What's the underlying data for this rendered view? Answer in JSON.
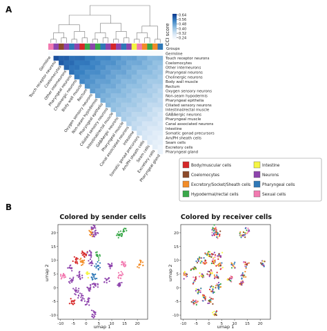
{
  "panel_labels": [
    "A",
    "B"
  ],
  "chart_data": [
    {
      "type": "heatmap",
      "title": "",
      "colorbar": {
        "label": "CCI score",
        "ticks": [
          0.64,
          0.56,
          0.48,
          0.4,
          0.32,
          0.24
        ],
        "range": [
          0.2,
          0.66
        ]
      },
      "groups_label": "Groups",
      "cells": [
        "Germline",
        "Touch receptor neurons",
        "Coelomocytes",
        "Other interneurons",
        "Pharyngeal neurons",
        "Cholinergic neurons",
        "Body wall muscle",
        "Rectum",
        "Oxygen sensory neurons",
        "Non-seam hypodermis",
        "Pharyngeal epithelia",
        "Ciliated sensory neurons",
        "Intestinal/rectal muscle",
        "GABAergic neurons",
        "Pharyngeal muscle",
        "Canal associated neurons",
        "Intestine",
        "Somatic gonad precursors",
        "Am/PH sheath cells",
        "Seam cells",
        "Excretory cells",
        "Pharyngeal gland"
      ],
      "cell_groups": [
        "Sexual cells",
        "Neurons",
        "Coelomocytes",
        "Neurons",
        "Pharyngeal cells",
        "Neurons",
        "Body/muscular cells",
        "Hypodermal/rectal cells",
        "Neurons",
        "Hypodermal/rectal cells",
        "Pharyngeal cells",
        "Neurons",
        "Body/muscular cells",
        "Neurons",
        "Pharyngeal cells",
        "Neurons",
        "Intestine",
        "Sexual cells",
        "Excretory/Socket/Sheath cells",
        "Hypodermal/rectal cells",
        "Excretory/Socket/Sheath cells",
        "Pharyngeal cells"
      ],
      "group_legend": [
        {
          "name": "Body/muscular cells",
          "color": "#d62728"
        },
        {
          "name": "Intestine",
          "color": "#f5f542"
        },
        {
          "name": "Coelomocytes",
          "color": "#8c4a2a"
        },
        {
          "name": "Neurons",
          "color": "#8e44ad"
        },
        {
          "name": "Excretory/Socket/Sheath cells",
          "color": "#f28c28"
        },
        {
          "name": "Pharyngeal cells",
          "color": "#2f78b7"
        },
        {
          "name": "Hypodermal/rectal cells",
          "color": "#3aa84a"
        },
        {
          "name": "Sexual cells",
          "color": "#f27ab0"
        }
      ]
    },
    {
      "type": "scatter",
      "title": "Colored by sender cells",
      "xlabel": "umap 1",
      "ylabel": "umap 2",
      "xlim": [
        -11,
        24
      ],
      "ylim": [
        -11.5,
        23
      ],
      "xticks": [
        -10,
        -5,
        0,
        5,
        10,
        15,
        20
      ],
      "yticks": [
        -10,
        -5,
        0,
        5,
        10,
        15,
        20
      ],
      "coloring": "sender"
    },
    {
      "type": "scatter",
      "title": "Colored by receiver cells",
      "xlabel": "umap 1",
      "ylabel": "umap 2",
      "xlim": [
        -11,
        24
      ],
      "ylim": [
        -11.5,
        23
      ],
      "xticks": [
        -10,
        -5,
        0,
        5,
        10,
        15,
        20
      ],
      "yticks": [
        -10,
        -5,
        0,
        5,
        10,
        15,
        20
      ],
      "coloring": "receiver"
    }
  ],
  "umap_clusters": [
    {
      "x": 2.5,
      "y": 21.5,
      "group": "Neurons"
    },
    {
      "x": 2.0,
      "y": 20.0,
      "group": "Excretory/Socket/Sheath cells"
    },
    {
      "x": 3.5,
      "y": 19.5,
      "group": "Neurons"
    },
    {
      "x": 14.5,
      "y": 20.5,
      "group": "Hypodermal/rectal cells"
    },
    {
      "x": 13.0,
      "y": 19.0,
      "group": "Hypodermal/rectal cells"
    },
    {
      "x": -0.5,
      "y": 12.5,
      "group": "Body/muscular cells"
    },
    {
      "x": 1.5,
      "y": 12.0,
      "group": "Neurons"
    },
    {
      "x": 4.5,
      "y": 11.5,
      "group": "Hypodermal/rectal cells"
    },
    {
      "x": -4.0,
      "y": 10.0,
      "group": "Body/muscular cells"
    },
    {
      "x": -1.5,
      "y": 9.5,
      "group": "Excretory/Socket/Sheath cells"
    },
    {
      "x": 2.0,
      "y": 9.0,
      "group": "Neurons"
    },
    {
      "x": 4.5,
      "y": 8.0,
      "group": "Pharyngeal cells"
    },
    {
      "x": -6.0,
      "y": 7.0,
      "group": "Neurons"
    },
    {
      "x": 9.5,
      "y": 8.0,
      "group": "Neurons"
    },
    {
      "x": 14.5,
      "y": 8.5,
      "group": "Sexual cells"
    },
    {
      "x": 21.0,
      "y": 8.5,
      "group": "Excretory/Socket/Sheath cells"
    },
    {
      "x": -9.0,
      "y": 4.5,
      "group": "Sexual cells"
    },
    {
      "x": -2.5,
      "y": 4.5,
      "group": "Neurons"
    },
    {
      "x": 0.5,
      "y": 5.0,
      "group": "Intestine"
    },
    {
      "x": 3.0,
      "y": 4.0,
      "group": "Pharyngeal cells"
    },
    {
      "x": 8.0,
      "y": 3.0,
      "group": "Neurons"
    },
    {
      "x": -5.5,
      "y": 2.5,
      "group": "Neurons"
    },
    {
      "x": 13.5,
      "y": 4.5,
      "group": "Sexual cells"
    },
    {
      "x": 13.0,
      "y": 1.5,
      "group": "Neurons"
    },
    {
      "x": -4.0,
      "y": -1.0,
      "group": "Neurons"
    },
    {
      "x": 1.5,
      "y": -0.5,
      "group": "Neurons"
    },
    {
      "x": 3.5,
      "y": 1.0,
      "group": "Neurons"
    },
    {
      "x": -5.5,
      "y": -5.0,
      "group": "Body/muscular cells"
    },
    {
      "x": -2.0,
      "y": -3.5,
      "group": "Neurons"
    },
    {
      "x": 0.5,
      "y": -5.0,
      "group": "Neurons"
    },
    {
      "x": 2.5,
      "y": -9.5,
      "group": "Neurons"
    }
  ]
}
